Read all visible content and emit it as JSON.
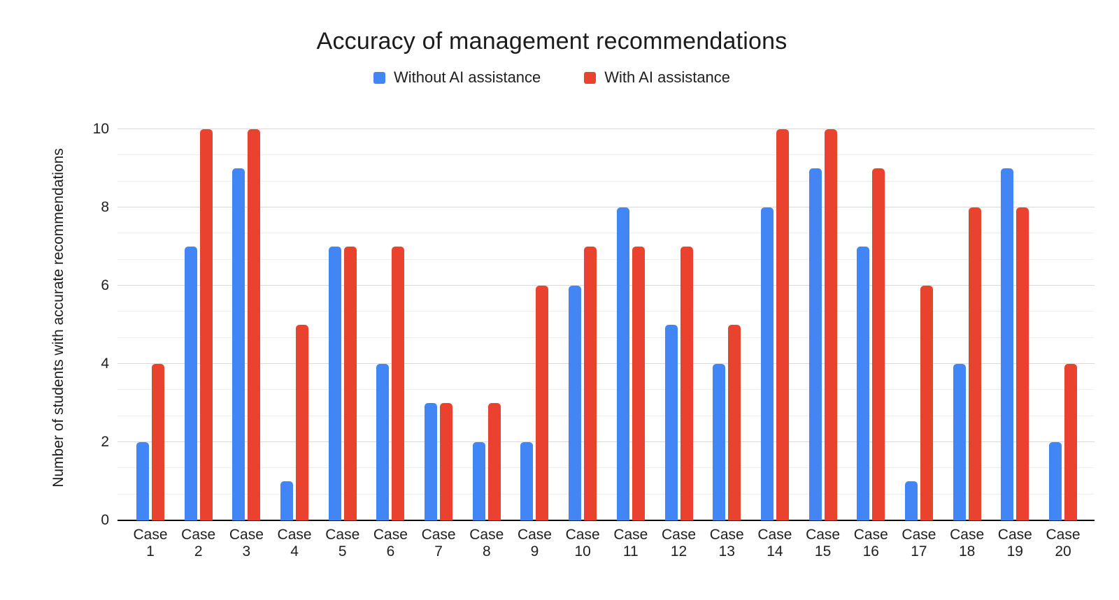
{
  "chart_data": {
    "type": "bar",
    "title": "Accuracy of management recommendations",
    "categories": [
      "Case 1",
      "Case 2",
      "Case 3",
      "Case 4",
      "Case 5",
      "Case 6",
      "Case 7",
      "Case 8",
      "Case 9",
      "Case 10",
      "Case 11",
      "Case 12",
      "Case 13",
      "Case 14",
      "Case 15",
      "Case 16",
      "Case 17",
      "Case 18",
      "Case 19",
      "Case 20"
    ],
    "series": [
      {
        "name": "Without AI assistance",
        "color": "#4285F4",
        "values": [
          2,
          7,
          9,
          1,
          7,
          4,
          3,
          2,
          2,
          6,
          8,
          5,
          4,
          8,
          9,
          7,
          1,
          4,
          9,
          2
        ]
      },
      {
        "name": "With AI assistance",
        "color": "#E9432F",
        "values": [
          4,
          10,
          10,
          5,
          7,
          7,
          3,
          3,
          6,
          7,
          7,
          7,
          5,
          10,
          10,
          9,
          6,
          8,
          8,
          4
        ]
      }
    ],
    "xlabel": "",
    "ylabel": "Number of students with accurate recommendations",
    "ylim": [
      0,
      10
    ],
    "yticks": [
      0,
      2,
      4,
      6,
      8,
      10
    ],
    "grid": true,
    "gridline_major_color": "#d9d9d9",
    "gridline_minor_color": "#efefef",
    "minor_gridline_step": 0.6667,
    "axis_color": "#0a0a0a",
    "legend_position": "top",
    "background": "#ffffff"
  }
}
